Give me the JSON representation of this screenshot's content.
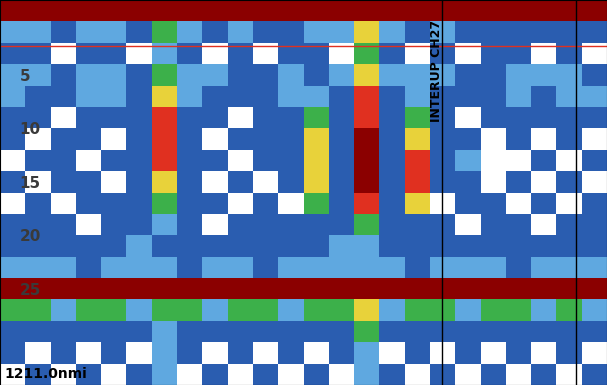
{
  "chart_data": {
    "type": "heatmap",
    "row_edges": [
      -2,
      0,
      2,
      4,
      6,
      8,
      10,
      12,
      14,
      16,
      18,
      20,
      22,
      24,
      26,
      28,
      30,
      32,
      34
    ],
    "cells": [
      [
        6,
        6,
        6,
        6,
        6,
        6,
        6,
        6,
        6,
        6,
        6,
        6,
        6,
        6,
        6,
        6,
        6,
        6,
        6,
        6,
        6,
        6,
        6,
        6
      ],
      [
        2,
        2,
        1,
        2,
        2,
        1,
        3,
        2,
        1,
        2,
        1,
        1,
        2,
        2,
        4,
        2,
        1,
        2,
        1,
        1,
        1,
        1,
        1,
        1
      ],
      [
        1,
        1,
        0,
        1,
        1,
        0,
        2,
        1,
        0,
        1,
        0,
        1,
        1,
        0,
        3,
        1,
        0,
        1,
        0,
        1,
        1,
        0,
        1,
        0
      ],
      [
        2,
        2,
        1,
        2,
        2,
        1,
        3,
        2,
        2,
        1,
        1,
        2,
        1,
        2,
        4,
        2,
        2,
        2,
        1,
        1,
        2,
        2,
        2,
        1
      ],
      [
        2,
        1,
        1,
        2,
        2,
        1,
        4,
        2,
        1,
        1,
        1,
        2,
        2,
        1,
        5,
        1,
        2,
        1,
        1,
        1,
        2,
        1,
        2,
        2
      ],
      [
        1,
        1,
        0,
        1,
        1,
        1,
        5,
        1,
        1,
        0,
        1,
        1,
        3,
        1,
        5,
        1,
        3,
        1,
        0,
        1,
        1,
        1,
        1,
        1
      ],
      [
        1,
        0,
        1,
        1,
        0,
        1,
        5,
        1,
        0,
        1,
        1,
        1,
        4,
        1,
        6,
        1,
        4,
        1,
        1,
        0,
        1,
        0,
        1,
        0
      ],
      [
        0,
        1,
        1,
        0,
        1,
        1,
        5,
        1,
        1,
        0,
        1,
        1,
        4,
        1,
        6,
        1,
        5,
        1,
        2,
        0,
        0,
        1,
        0,
        1
      ],
      [
        1,
        0,
        1,
        1,
        0,
        1,
        4,
        1,
        0,
        1,
        0,
        1,
        4,
        1,
        6,
        1,
        5,
        1,
        1,
        0,
        1,
        0,
        1,
        0
      ],
      [
        0,
        1,
        0,
        1,
        1,
        1,
        3,
        1,
        1,
        0,
        1,
        0,
        3,
        1,
        5,
        1,
        4,
        0,
        1,
        1,
        0,
        1,
        0,
        1
      ],
      [
        1,
        1,
        1,
        0,
        1,
        1,
        2,
        1,
        0,
        1,
        1,
        1,
        1,
        1,
        3,
        1,
        1,
        1,
        0,
        1,
        1,
        0,
        1,
        1
      ],
      [
        1,
        1,
        1,
        1,
        1,
        2,
        1,
        1,
        1,
        1,
        1,
        1,
        1,
        2,
        2,
        1,
        1,
        1,
        1,
        1,
        1,
        1,
        1,
        1
      ],
      [
        2,
        2,
        2,
        1,
        2,
        2,
        2,
        1,
        2,
        2,
        1,
        2,
        2,
        2,
        2,
        2,
        1,
        2,
        2,
        2,
        1,
        2,
        2,
        2
      ],
      [
        6,
        6,
        6,
        6,
        6,
        6,
        6,
        6,
        6,
        6,
        6,
        6,
        6,
        6,
        6,
        6,
        6,
        6,
        6,
        6,
        6,
        6,
        6,
        6
      ],
      [
        3,
        3,
        2,
        3,
        3,
        2,
        3,
        3,
        2,
        3,
        3,
        2,
        3,
        3,
        4,
        2,
        3,
        3,
        2,
        3,
        3,
        2,
        3,
        2
      ],
      [
        1,
        1,
        1,
        1,
        1,
        1,
        2,
        1,
        1,
        1,
        1,
        1,
        1,
        1,
        3,
        1,
        1,
        1,
        1,
        1,
        1,
        1,
        1,
        1
      ],
      [
        1,
        0,
        1,
        0,
        1,
        0,
        2,
        1,
        0,
        1,
        0,
        1,
        0,
        1,
        2,
        0,
        1,
        0,
        1,
        0,
        1,
        0,
        1,
        0
      ],
      [
        0,
        1,
        0,
        1,
        0,
        1,
        2,
        0,
        1,
        0,
        1,
        0,
        1,
        0,
        2,
        1,
        0,
        1,
        0,
        1,
        0,
        1,
        0,
        1
      ]
    ],
    "colors": [
      "#ffffff",
      "#2a5db0",
      "#5fa8e0",
      "#3cb04a",
      "#e8d23a",
      "#e03020",
      "#8b0000"
    ],
    "color_range": [
      0,
      6
    ],
    "ylim": [
      34,
      -2
    ],
    "yticks": [
      5,
      10,
      15,
      20,
      25
    ],
    "tick_labels": "y",
    "annotations": [
      "INTERUP CH27",
      "1211.0nmi"
    ]
  }
}
